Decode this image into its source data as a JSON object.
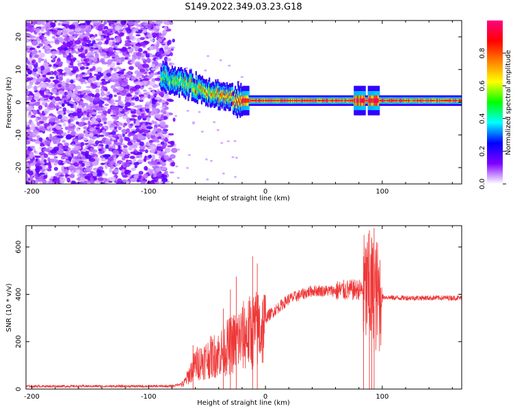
{
  "title": "S149.2022.349.03.23.G18",
  "chart_data": [
    {
      "type": "heatmap",
      "name": "spectrogram",
      "xlabel": "Height of straight line (km)",
      "ylabel": "Frequency (Hz)",
      "xlim": [
        -205,
        168
      ],
      "ylim": [
        -25,
        25
      ],
      "x_ticks": [
        -200,
        -100,
        0,
        100
      ],
      "y_ticks": [
        -20,
        -10,
        0,
        10,
        20
      ],
      "colorbar": {
        "label": "Normalized spectral amplitude",
        "range": [
          0,
          1
        ],
        "ticks": [
          0.0,
          0.2,
          0.4,
          0.6,
          0.8
        ],
        "tick_labels": [
          "0.0",
          "0.2",
          "0.4",
          "0.6",
          "0.8"
        ],
        "colors": [
          "#ffffff",
          "#7f00ff",
          "#0000ff",
          "#00ffff",
          "#00ff00",
          "#ffff00",
          "#ff8000",
          "#ff0000",
          "#ff0080"
        ]
      },
      "regions": {
        "noise_x_range": [
          -205,
          -84
        ],
        "noise_level": 0.12,
        "signal_start_km": -90,
        "signal_center_hz": 0.5,
        "wobble_at_km": [
          -20,
          80,
          92
        ]
      }
    },
    {
      "type": "line",
      "name": "snr",
      "xlabel": "Height of straight line (km)",
      "ylabel": "SNR (10 * v/v)",
      "xlim": [
        -205,
        168
      ],
      "ylim": [
        0,
        690
      ],
      "x_ticks": [
        -200,
        -100,
        0,
        100
      ],
      "y_ticks": [
        0,
        200,
        400,
        600
      ],
      "series_color": "#ef3737",
      "envelope": {
        "x": [
          -205,
          -80,
          -70,
          -60,
          -40,
          -20,
          -10,
          0,
          20,
          40,
          60,
          80,
          88,
          92,
          96,
          100,
          110,
          168
        ],
        "y": [
          12,
          12,
          25,
          120,
          170,
          250,
          280,
          300,
          380,
          415,
          415,
          420,
          410,
          400,
          390,
          390,
          385,
          385
        ]
      },
      "spikes": [
        {
          "x": -62,
          "y": 185
        },
        {
          "x": -36,
          "y": 340
        },
        {
          "x": -30,
          "y": 420
        },
        {
          "x": -25,
          "y": 475
        },
        {
          "x": -11,
          "y": 560
        },
        {
          "x": -7,
          "y": 530
        },
        {
          "x": 84,
          "y": 560
        },
        {
          "x": 89,
          "y": 670
        },
        {
          "x": 91,
          "y": 640
        },
        {
          "x": 93,
          "y": 680
        }
      ]
    }
  ]
}
